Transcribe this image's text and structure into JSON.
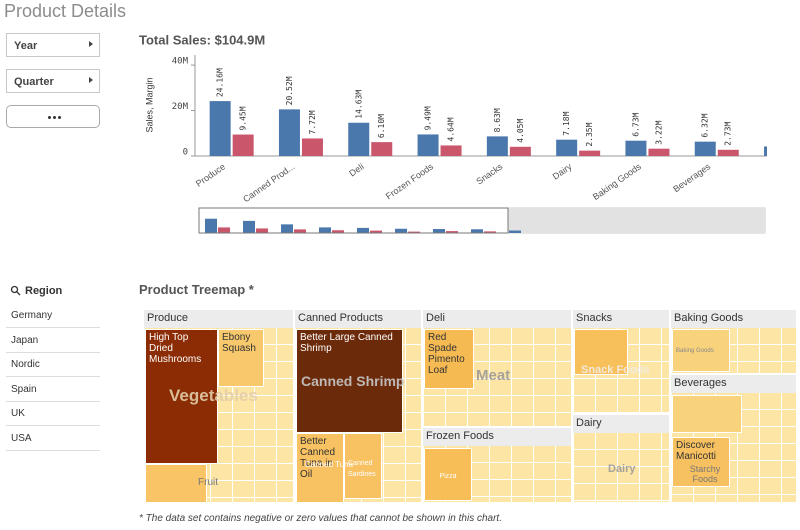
{
  "header": {
    "title": "Product Details"
  },
  "filters": [
    "Year",
    "Quarter"
  ],
  "region": {
    "title": "Region",
    "items": [
      "Germany",
      "Japan",
      "Nordic",
      "Spain",
      "UK",
      "USA"
    ]
  },
  "chart_data": {
    "type": "bar",
    "title": "Total Sales: $104.9M",
    "y_label": "Sales, Margin",
    "categories": [
      "Produce",
      "Canned Prod...",
      "Deli",
      "Frozen Foods",
      "Snacks",
      "Dairy",
      "Baking Goods",
      "Beverages",
      null
    ],
    "series": [
      {
        "color": "#4a78ad",
        "values": [
          24.16,
          20.52,
          14.63,
          9.49,
          8.63,
          7.18,
          6.73,
          6.32,
          4.2
        ],
        "value_labels": [
          "24.16M",
          "20.52M",
          "14.63M",
          "9.49M",
          "8.63M",
          "7.18M",
          "6.73M",
          "6.32M",
          null
        ]
      },
      {
        "color": "#c9566b",
        "values": [
          9.45,
          7.72,
          6.1,
          4.64,
          4.05,
          2.35,
          3.22,
          2.73,
          null
        ],
        "value_labels": [
          "9.45M",
          "7.72M",
          "6.10M",
          "4.64M",
          "4.05M",
          "2.35M",
          "3.22M",
          "2.73M",
          null
        ]
      }
    ],
    "ylim": [
      0,
      44
    ],
    "yticks": [
      0,
      {
        "value": 20,
        "label": "20M"
      },
      {
        "value": 40,
        "label": "40M"
      }
    ]
  },
  "treemap": {
    "title": "Product Treemap *",
    "groups": [
      "Produce",
      "Canned Products",
      "Deli",
      "Frozen Foods",
      "Snacks",
      "Dairy",
      "Baking Goods",
      "Beverages"
    ],
    "labels": [
      "High Top Dried Mushrooms",
      "Ebony Squash",
      "Vegetables",
      "Fruit",
      "Better Large Canned Shrimp",
      "Canned Shrimp",
      "Better Canned Tuna in Oil",
      "Canned Tuna",
      "Canned Sardines",
      "Red Spade Pimento Loaf",
      "Meat",
      "Pizza",
      "Snack Foods",
      "Dairy",
      "Baking Goods",
      "Discover Manicotti",
      "Starchy Foods"
    ],
    "footnote": "* The data set contains negative or zero values that cannot be shown in this chart."
  }
}
